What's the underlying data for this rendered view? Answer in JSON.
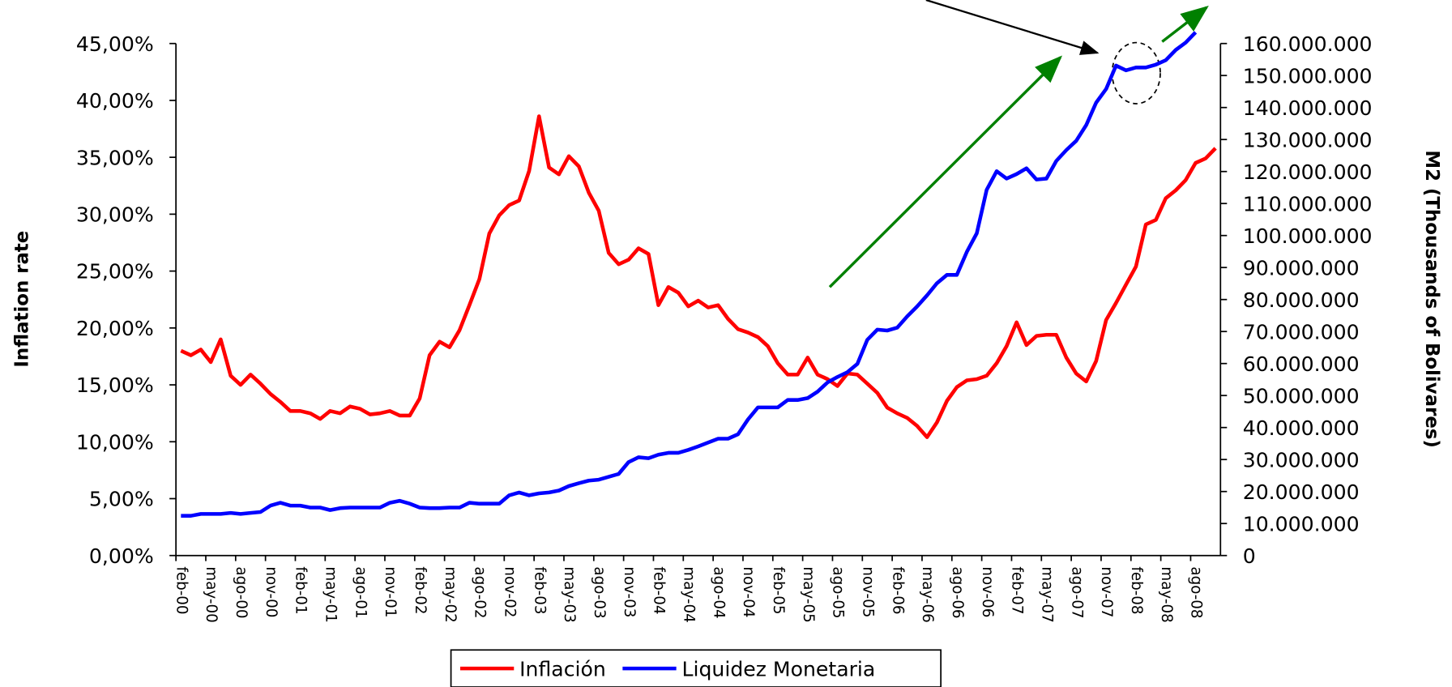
{
  "chart_data": {
    "type": "line",
    "ylabel": "Inflation rate",
    "y2label": "M2 (Thousands of Bolivares)",
    "categories": [
      "feb-00",
      null,
      null,
      "may-00",
      null,
      null,
      "ago-00",
      null,
      null,
      "nov-00",
      null,
      null,
      "feb-01",
      null,
      null,
      "may-01",
      null,
      null,
      "ago-01",
      null,
      null,
      "nov-01",
      null,
      null,
      "feb-02",
      null,
      null,
      "may-02",
      null,
      null,
      "ago-02",
      null,
      null,
      "nov-02",
      null,
      null,
      "feb-03",
      null,
      null,
      "may-03",
      null,
      null,
      "ago-03",
      null,
      null,
      "nov-03",
      null,
      null,
      "feb-04",
      null,
      null,
      "may-04",
      null,
      null,
      "ago-04",
      null,
      null,
      "nov-04",
      null,
      null,
      "feb-05",
      null,
      null,
      "may-05",
      null,
      null,
      "ago-05",
      null,
      null,
      "nov-05",
      null,
      null,
      "feb-06",
      null,
      null,
      "may-06",
      null,
      null,
      "ago-06",
      null,
      null,
      "nov-06",
      null,
      null,
      "feb-07",
      null,
      null,
      "may-07",
      null,
      null,
      "ago-07",
      null,
      null,
      "nov-07",
      null,
      null,
      "feb-08",
      null,
      null,
      "may-08",
      null,
      null,
      "ago-08",
      null,
      null
    ],
    "series": [
      {
        "name": "Inflación",
        "color": "#ff0000",
        "axis": "y",
        "values": [
          18.0,
          17.6,
          18.1,
          17.0,
          19.0,
          15.8,
          15.0,
          15.9,
          15.1,
          14.2,
          13.5,
          12.7,
          12.7,
          12.5,
          12.0,
          12.7,
          12.5,
          13.1,
          12.9,
          12.4,
          12.5,
          12.7,
          12.3,
          12.3,
          13.8,
          17.6,
          18.8,
          18.3,
          19.8,
          22.0,
          24.3,
          28.3,
          29.9,
          30.8,
          31.2,
          33.8,
          38.6,
          34.1,
          33.5,
          35.1,
          34.2,
          31.9,
          30.3,
          26.6,
          25.6,
          26.0,
          27.0,
          26.5,
          22.0,
          23.6,
          23.1,
          21.9,
          22.4,
          21.8,
          22.0,
          20.8,
          19.9,
          19.6,
          19.2,
          18.4,
          16.9,
          15.9,
          15.9,
          17.4,
          15.9,
          15.5,
          14.9,
          16.0,
          15.9,
          15.1,
          14.3,
          13.0,
          12.5,
          12.1,
          11.4,
          10.4,
          11.7,
          13.6,
          14.8,
          15.4,
          15.5,
          15.8,
          16.9,
          18.4,
          20.5,
          18.5,
          19.3,
          19.4,
          19.4,
          17.4,
          16.0,
          15.3,
          17.1,
          20.7,
          22.2,
          23.8,
          25.4,
          29.1,
          29.5,
          31.4,
          32.1,
          33.0,
          34.5,
          34.9,
          35.8
        ]
      },
      {
        "name": "Liquidez Monetaria",
        "color": "#0000ff",
        "axis": "y2",
        "values": [
          12400000,
          12400000,
          13000000,
          13000000,
          13000000,
          13300000,
          13000000,
          13300000,
          13600000,
          15600000,
          16500000,
          15600000,
          15600000,
          15000000,
          15000000,
          14200000,
          14800000,
          15000000,
          15000000,
          15000000,
          15000000,
          16500000,
          17100000,
          16200000,
          15000000,
          14800000,
          14800000,
          15000000,
          15000000,
          16500000,
          16200000,
          16200000,
          16200000,
          18800000,
          19700000,
          18800000,
          19400000,
          19700000,
          20300000,
          21700000,
          22600000,
          23400000,
          23700000,
          24600000,
          25500000,
          29200000,
          30700000,
          30400000,
          31500000,
          32100000,
          32100000,
          33000000,
          34100000,
          35300000,
          36500000,
          36500000,
          37900000,
          42500000,
          46300000,
          46300000,
          46300000,
          48600000,
          48600000,
          49200000,
          51200000,
          54100000,
          55800000,
          57300000,
          59900000,
          67400000,
          70600000,
          70300000,
          71200000,
          74700000,
          77800000,
          81300000,
          85100000,
          87700000,
          87700000,
          94900000,
          100700000,
          114300000,
          120100000,
          117800000,
          119200000,
          121000000,
          117500000,
          117800000,
          123300000,
          126700000,
          129600000,
          134500000,
          141500000,
          145800000,
          153100000,
          151600000,
          152500000,
          152500000,
          153400000,
          154800000,
          158000000,
          160300000,
          163500000,
          null,
          null
        ]
      }
    ],
    "ylim": [
      0,
      45
    ],
    "yticks": [
      {
        "value": 0,
        "label": "0,00%"
      },
      {
        "value": 5,
        "label": "5,00%"
      },
      {
        "value": 10,
        "label": "10,00%"
      },
      {
        "value": 15,
        "label": "15,00%"
      },
      {
        "value": 20,
        "label": "20,00%"
      },
      {
        "value": 25,
        "label": "25,00%"
      },
      {
        "value": 30,
        "label": "30,00%"
      },
      {
        "value": 35,
        "label": "35,00%"
      },
      {
        "value": 40,
        "label": "40,00%"
      },
      {
        "value": 45,
        "label": "45,00%"
      }
    ],
    "y2lim": [
      0,
      160000000
    ],
    "y2ticks": [
      0,
      {
        "value": 10000000,
        "label": "10.000.000"
      },
      {
        "value": 20000000,
        "label": "20.000.000"
      },
      {
        "value": 30000000,
        "label": "30.000.000"
      },
      {
        "value": 40000000,
        "label": "40.000.000"
      },
      {
        "value": 50000000,
        "label": "50.000.000"
      },
      {
        "value": 60000000,
        "label": "60.000.000"
      },
      {
        "value": 70000000,
        "label": "70.000.000"
      },
      {
        "value": 80000000,
        "label": "80.000.000"
      },
      {
        "value": 90000000,
        "label": "90.000.000"
      },
      {
        "value": 100000000,
        "label": "100.000.000"
      },
      {
        "value": 110000000,
        "label": "110.000.000"
      },
      {
        "value": 120000000,
        "label": "120.000.000"
      },
      {
        "value": 130000000,
        "label": "130.000.000"
      },
      {
        "value": 140000000,
        "label": "140.000.000"
      },
      {
        "value": 150000000,
        "label": "150.000.000"
      },
      {
        "value": 160000000,
        "label": "160.000.000"
      }
    ],
    "legend": "bottom",
    "grid": false
  }
}
